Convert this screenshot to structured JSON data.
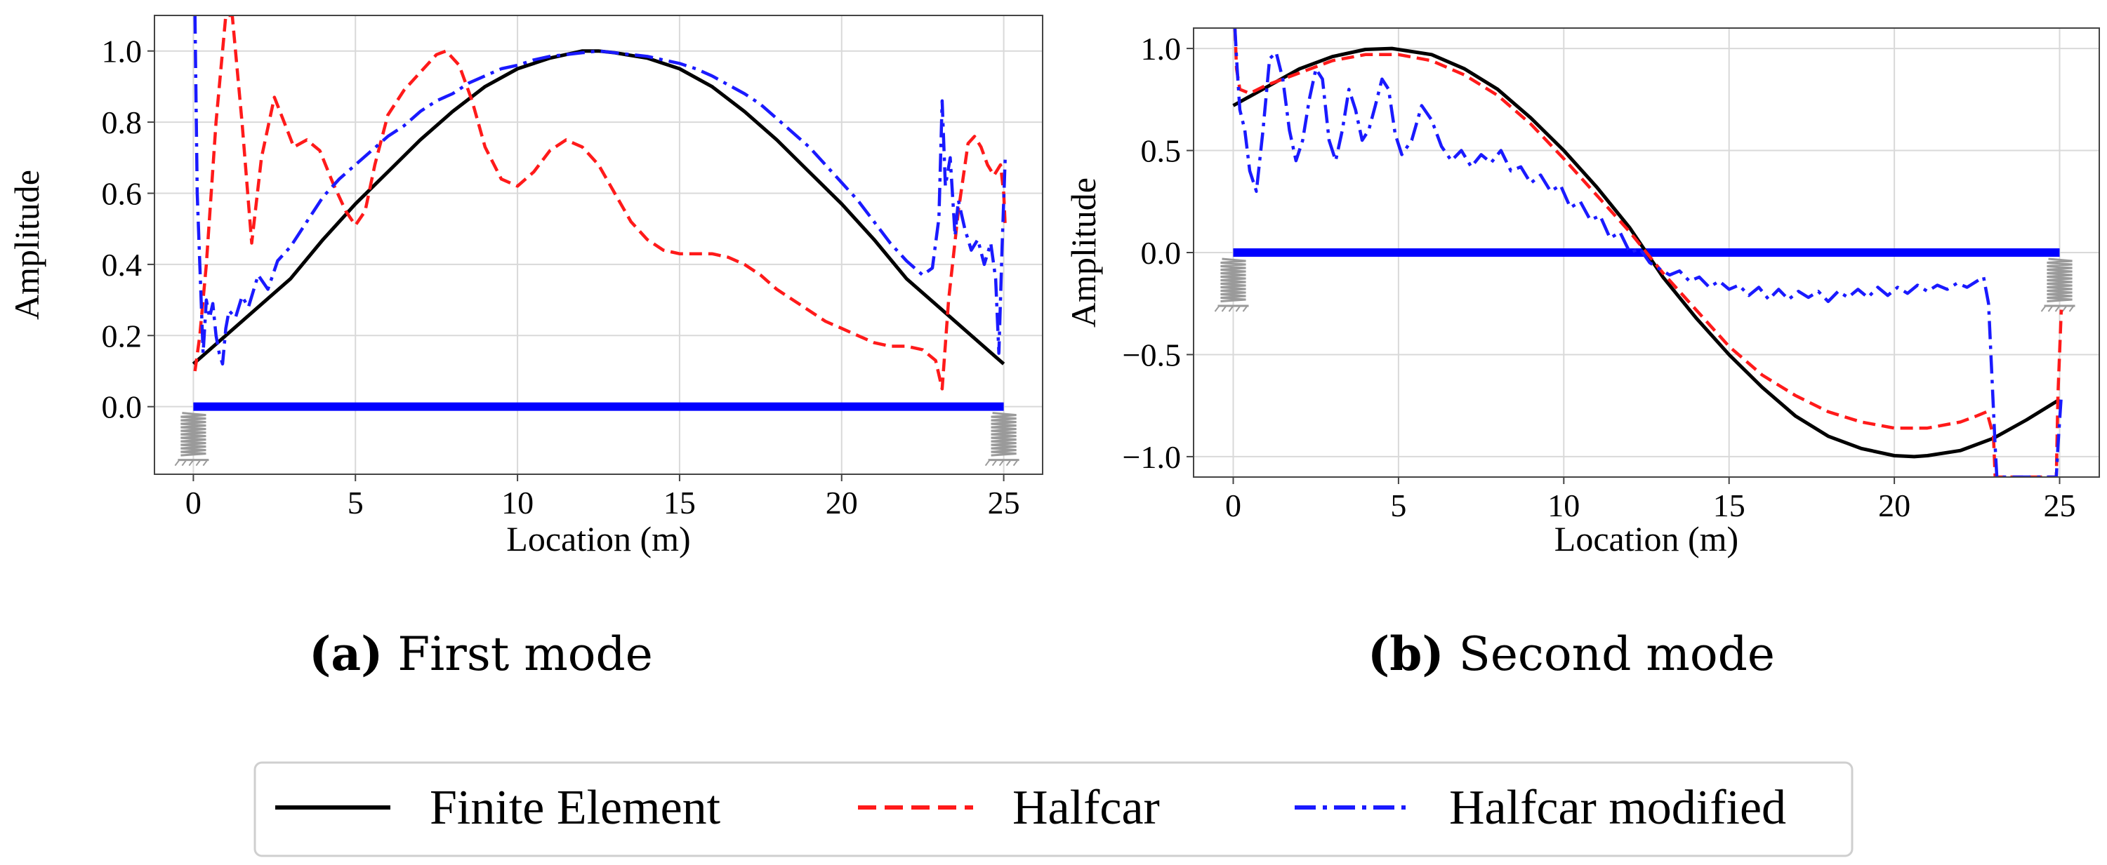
{
  "figure": {
    "colors": {
      "fe": "#000000",
      "halfcar": "#ff1a1a",
      "modified": "#1a1aff",
      "beam": "#0000ff",
      "grid": "#d9d9d9",
      "spring": "#9a9a9a"
    },
    "legend": [
      "Finite Element",
      "Halfcar",
      "Halfcar modified"
    ]
  },
  "chart_data": [
    {
      "type": "line",
      "caption_letter": "(a)",
      "caption_title": "First mode",
      "title": "",
      "xlabel": "Location (m)",
      "ylabel": "Amplitude",
      "xlim": [
        -1.2,
        26.2
      ],
      "ylim": [
        -0.19,
        1.1
      ],
      "xticks": [
        0,
        5,
        10,
        15,
        20,
        25
      ],
      "xtick_labels": [
        "0",
        "5",
        "10",
        "15",
        "20",
        "25"
      ],
      "yticks": [
        0.0,
        0.2,
        0.4,
        0.6,
        0.8,
        1.0
      ],
      "ytick_labels": [
        "0.0",
        "0.2",
        "0.4",
        "0.6",
        "0.8",
        "1.0"
      ],
      "beam": {
        "y": 0.0,
        "x_start": 0,
        "x_end": 25
      },
      "grid": true,
      "series": [
        {
          "name": "Finite Element",
          "style": "solid",
          "x": [
            0,
            1,
            2,
            3,
            4,
            5,
            6,
            7,
            8,
            9,
            10,
            11,
            12,
            12.5,
            13,
            14,
            15,
            16,
            17,
            18,
            19,
            20,
            21,
            22,
            23,
            24,
            25
          ],
          "y": [
            0.12,
            0.2,
            0.28,
            0.36,
            0.47,
            0.57,
            0.66,
            0.75,
            0.83,
            0.9,
            0.95,
            0.98,
            1.0,
            1.0,
            0.995,
            0.98,
            0.95,
            0.9,
            0.83,
            0.75,
            0.66,
            0.57,
            0.47,
            0.36,
            0.28,
            0.2,
            0.12
          ]
        },
        {
          "name": "Halfcar",
          "style": "dashed",
          "x": [
            0.05,
            0.2,
            0.4,
            0.7,
            1.0,
            1.2,
            1.5,
            1.8,
            2.1,
            2.5,
            2.8,
            3.1,
            3.5,
            3.9,
            4.3,
            4.7,
            5.0,
            5.3,
            5.6,
            6.0,
            6.5,
            7.0,
            7.5,
            7.8,
            8.2,
            8.6,
            9.0,
            9.5,
            10.0,
            10.5,
            11.0,
            11.5,
            12.0,
            12.5,
            13.0,
            13.5,
            14.0,
            14.5,
            15.0,
            15.5,
            16.0,
            16.5,
            17.0,
            17.5,
            18.0,
            18.5,
            19.0,
            19.5,
            20.0,
            20.5,
            21.0,
            21.5,
            22.0,
            22.5,
            22.9,
            23.1,
            23.3,
            23.6,
            23.9,
            24.1,
            24.3,
            24.5,
            24.7,
            24.9,
            25.0,
            25.05
          ],
          "y": [
            0.1,
            0.2,
            0.4,
            0.8,
            1.1,
            1.1,
            0.8,
            0.46,
            0.7,
            0.87,
            0.8,
            0.73,
            0.75,
            0.72,
            0.63,
            0.55,
            0.51,
            0.55,
            0.68,
            0.82,
            0.89,
            0.94,
            0.99,
            1.0,
            0.96,
            0.86,
            0.73,
            0.64,
            0.62,
            0.66,
            0.72,
            0.75,
            0.73,
            0.68,
            0.6,
            0.52,
            0.47,
            0.44,
            0.43,
            0.43,
            0.43,
            0.42,
            0.4,
            0.37,
            0.33,
            0.3,
            0.27,
            0.24,
            0.22,
            0.2,
            0.18,
            0.17,
            0.17,
            0.16,
            0.13,
            0.05,
            0.3,
            0.55,
            0.74,
            0.76,
            0.73,
            0.68,
            0.65,
            0.68,
            0.6,
            0.5
          ]
        },
        {
          "name": "Halfcar modified",
          "style": "dashdot",
          "x": [
            0.05,
            0.12,
            0.2,
            0.3,
            0.4,
            0.5,
            0.6,
            0.7,
            0.8,
            0.9,
            1.0,
            1.1,
            1.3,
            1.5,
            1.7,
            2.0,
            2.3,
            2.6,
            3.0,
            3.5,
            4.0,
            4.5,
            5.0,
            5.5,
            6.0,
            6.5,
            7.0,
            7.5,
            8.0,
            8.5,
            9.0,
            9.5,
            10.0,
            10.5,
            11.0,
            11.5,
            12.0,
            12.5,
            13.0,
            13.5,
            14.0,
            14.5,
            15.0,
            15.5,
            16.0,
            16.5,
            17.0,
            17.5,
            18.0,
            18.5,
            19.0,
            19.5,
            20.0,
            20.5,
            21.0,
            21.5,
            22.0,
            22.5,
            22.8,
            23.0,
            23.1,
            23.2,
            23.35,
            23.5,
            23.6,
            23.8,
            24.0,
            24.2,
            24.4,
            24.6,
            24.75,
            24.85,
            24.95,
            25.05
          ],
          "y": [
            1.1,
            0.6,
            0.4,
            0.15,
            0.3,
            0.25,
            0.29,
            0.2,
            0.15,
            0.12,
            0.22,
            0.27,
            0.25,
            0.31,
            0.28,
            0.37,
            0.33,
            0.41,
            0.45,
            0.52,
            0.59,
            0.64,
            0.68,
            0.72,
            0.76,
            0.79,
            0.83,
            0.86,
            0.88,
            0.91,
            0.93,
            0.95,
            0.96,
            0.975,
            0.985,
            0.99,
            0.995,
            1.0,
            0.995,
            0.99,
            0.985,
            0.975,
            0.965,
            0.95,
            0.93,
            0.905,
            0.88,
            0.85,
            0.81,
            0.77,
            0.73,
            0.68,
            0.63,
            0.58,
            0.52,
            0.46,
            0.41,
            0.37,
            0.39,
            0.53,
            0.86,
            0.62,
            0.7,
            0.48,
            0.58,
            0.5,
            0.44,
            0.47,
            0.4,
            0.46,
            0.36,
            0.15,
            0.45,
            0.71
          ]
        }
      ]
    },
    {
      "type": "line",
      "caption_letter": "(b)",
      "caption_title": "Second mode",
      "title": "",
      "xlabel": "Location (m)",
      "ylabel": "Amplitude",
      "xlim": [
        -1.2,
        26.2
      ],
      "ylim": [
        -1.1,
        1.1
      ],
      "xticks": [
        0,
        5,
        10,
        15,
        20,
        25
      ],
      "xtick_labels": [
        "0",
        "5",
        "10",
        "15",
        "20",
        "25"
      ],
      "yticks": [
        -1.0,
        -0.5,
        0.0,
        0.5,
        1.0
      ],
      "ytick_labels": [
        "−1.0",
        "−0.5",
        "0.0",
        "0.5",
        "1.0"
      ],
      "beam": {
        "y": 0.0,
        "x_start": 0,
        "x_end": 25
      },
      "grid": true,
      "series": [
        {
          "name": "Finite Element",
          "style": "solid",
          "x": [
            0,
            1,
            2,
            3,
            4,
            4.8,
            6,
            7,
            8,
            9,
            10,
            11,
            12,
            12.5,
            13,
            14,
            15,
            16,
            17,
            18,
            19,
            20,
            20.6,
            21,
            22,
            23,
            24,
            25
          ],
          "y": [
            0.72,
            0.81,
            0.9,
            0.96,
            0.995,
            1.0,
            0.97,
            0.9,
            0.8,
            0.66,
            0.5,
            0.32,
            0.12,
            0.0,
            -0.12,
            -0.32,
            -0.5,
            -0.66,
            -0.8,
            -0.9,
            -0.96,
            -0.995,
            -1.0,
            -0.995,
            -0.97,
            -0.91,
            -0.82,
            -0.72
          ]
        },
        {
          "name": "Halfcar",
          "style": "dashed",
          "x": [
            0.05,
            0.1,
            0.2,
            0.5,
            1,
            2,
            3,
            4,
            5,
            6,
            7,
            8,
            9,
            10,
            11,
            12,
            13,
            14,
            15,
            16,
            17,
            18,
            19,
            20,
            21,
            22,
            22.5,
            22.8,
            23.0,
            23.05,
            23.1,
            24.9,
            24.95,
            25.05
          ],
          "y": [
            1.1,
            0.9,
            0.8,
            0.78,
            0.82,
            0.88,
            0.94,
            0.97,
            0.97,
            0.94,
            0.87,
            0.77,
            0.63,
            0.46,
            0.28,
            0.1,
            -0.1,
            -0.28,
            -0.46,
            -0.6,
            -0.7,
            -0.78,
            -0.83,
            -0.86,
            -0.86,
            -0.83,
            -0.8,
            -0.78,
            -0.9,
            -1.1,
            -1.1,
            -1.1,
            -0.7,
            -0.28
          ]
        },
        {
          "name": "Halfcar modified",
          "style": "dashdot",
          "x": [
            0.05,
            0.12,
            0.2,
            0.35,
            0.5,
            0.7,
            0.9,
            1.1,
            1.3,
            1.5,
            1.7,
            1.9,
            2.1,
            2.3,
            2.5,
            2.7,
            2.9,
            3.1,
            3.3,
            3.5,
            3.7,
            3.9,
            4.1,
            4.3,
            4.5,
            4.7,
            4.9,
            5.1,
            5.4,
            5.7,
            6.0,
            6.3,
            6.6,
            6.9,
            7.2,
            7.5,
            7.8,
            8.1,
            8.4,
            8.7,
            9.0,
            9.3,
            9.6,
            9.9,
            10.2,
            10.5,
            10.8,
            11.1,
            11.4,
            11.7,
            12.0,
            12.3,
            12.6,
            12.9,
            13.2,
            13.5,
            13.8,
            14.1,
            14.4,
            14.7,
            15.0,
            15.3,
            15.6,
            15.9,
            16.2,
            16.5,
            16.8,
            17.1,
            17.4,
            17.7,
            18.0,
            18.3,
            18.6,
            18.9,
            19.2,
            19.5,
            19.8,
            20.1,
            20.4,
            20.7,
            21.0,
            21.3,
            21.6,
            21.9,
            22.2,
            22.5,
            22.7,
            22.85,
            22.95,
            23.05,
            23.1,
            24.9,
            24.95,
            25.05
          ],
          "y": [
            1.1,
            0.9,
            0.7,
            0.6,
            0.4,
            0.3,
            0.6,
            0.95,
            0.98,
            0.85,
            0.6,
            0.45,
            0.55,
            0.75,
            0.9,
            0.85,
            0.55,
            0.45,
            0.6,
            0.8,
            0.7,
            0.55,
            0.6,
            0.72,
            0.85,
            0.8,
            0.58,
            0.48,
            0.55,
            0.72,
            0.65,
            0.52,
            0.45,
            0.5,
            0.42,
            0.48,
            0.44,
            0.5,
            0.4,
            0.42,
            0.34,
            0.38,
            0.3,
            0.33,
            0.22,
            0.25,
            0.16,
            0.18,
            0.07,
            0.1,
            0.0,
            0.02,
            -0.05,
            -0.08,
            -0.11,
            -0.09,
            -0.14,
            -0.12,
            -0.17,
            -0.14,
            -0.18,
            -0.16,
            -0.21,
            -0.17,
            -0.23,
            -0.18,
            -0.23,
            -0.19,
            -0.22,
            -0.19,
            -0.24,
            -0.19,
            -0.22,
            -0.18,
            -0.22,
            -0.17,
            -0.21,
            -0.17,
            -0.2,
            -0.16,
            -0.19,
            -0.16,
            -0.18,
            -0.15,
            -0.17,
            -0.14,
            -0.12,
            -0.25,
            -0.6,
            -0.95,
            -1.1,
            -1.1,
            -0.95,
            -0.7
          ]
        }
      ]
    }
  ]
}
